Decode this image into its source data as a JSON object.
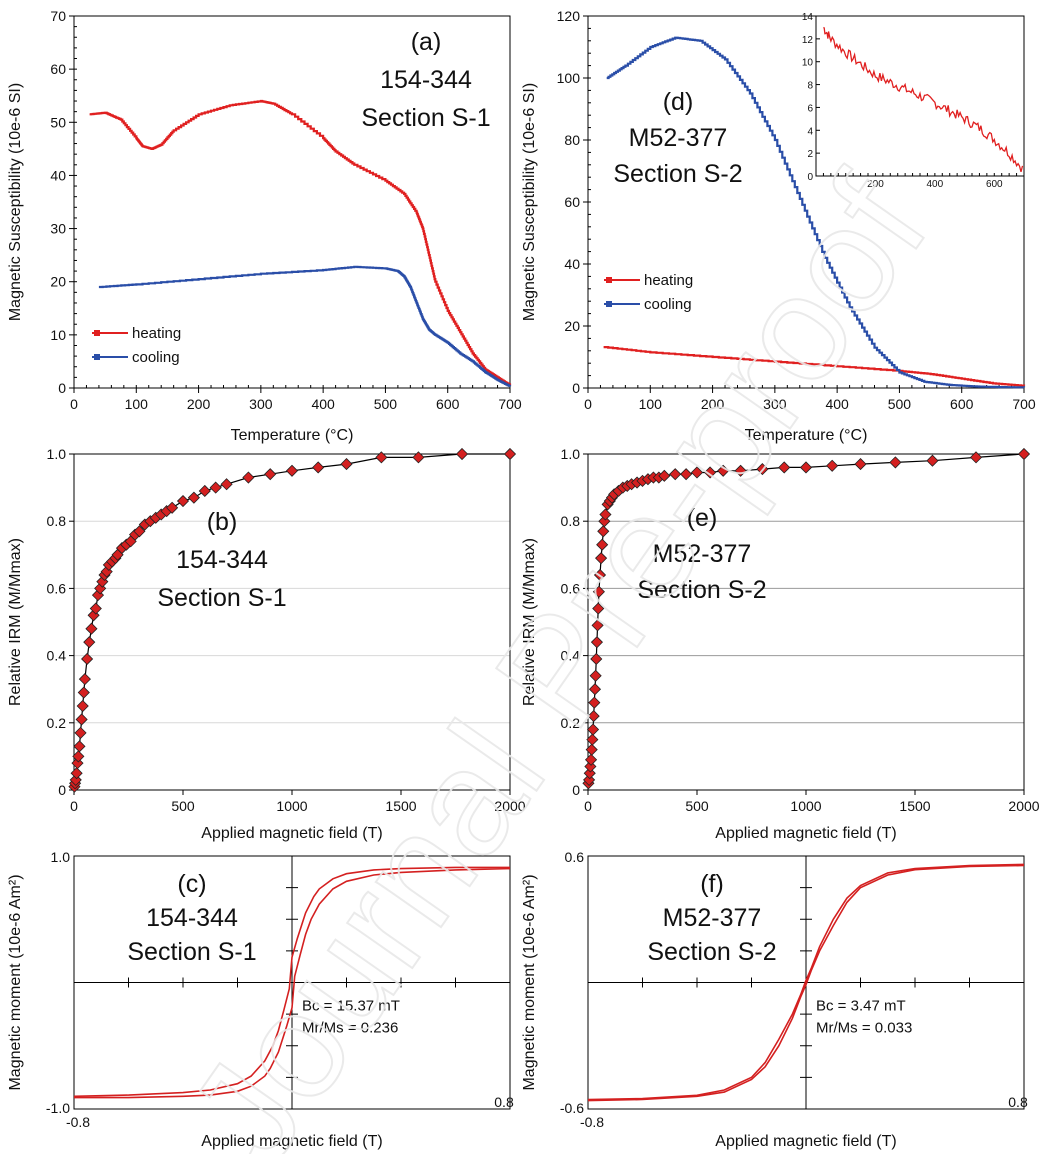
{
  "figure": {
    "watermark": "Journal Pre-proof"
  },
  "chart_data": [
    {
      "id": "a",
      "type": "line",
      "annotation": [
        "(a)",
        "154-344",
        "Section S-1"
      ],
      "xlabel": "Temperature (°C)",
      "ylabel": "Magnetic Susceptibility (10e-6 SI)",
      "xlim": [
        0,
        700
      ],
      "ylim": [
        0,
        70
      ],
      "xticks": [
        0,
        100,
        200,
        300,
        400,
        500,
        600,
        700
      ],
      "yticks": [
        0,
        10,
        20,
        30,
        40,
        50,
        60,
        70
      ],
      "legend": "lower-left",
      "series": [
        {
          "name": "heating",
          "color": "#e02020",
          "x": [
            25,
            50,
            75,
            100,
            110,
            125,
            140,
            160,
            200,
            250,
            300,
            320,
            350,
            400,
            420,
            450,
            500,
            530,
            550,
            560,
            570,
            580,
            600,
            620,
            640,
            660,
            680,
            700
          ],
          "y": [
            51.5,
            51.8,
            50.5,
            47,
            45.5,
            45,
            45.8,
            48.5,
            51.5,
            53.2,
            54,
            53.5,
            51.5,
            47,
            44.5,
            42,
            39,
            36.5,
            33,
            30,
            25,
            20,
            14.5,
            10.5,
            6.5,
            3.5,
            2,
            0.5
          ]
        },
        {
          "name": "cooling",
          "color": "#2a4ea8",
          "x": [
            40,
            100,
            200,
            300,
            400,
            450,
            500,
            520,
            530,
            540,
            550,
            560,
            570,
            580,
            600,
            620,
            640,
            660,
            680,
            700
          ],
          "y": [
            19,
            19.5,
            20.5,
            21.5,
            22.2,
            22.8,
            22.5,
            22,
            21,
            19,
            16,
            13,
            11,
            10,
            8.5,
            6.5,
            5,
            3,
            1.5,
            0.3
          ]
        }
      ]
    },
    {
      "id": "d",
      "type": "line",
      "annotation": [
        "(d)",
        "M52-377",
        "Section S-2"
      ],
      "xlabel": "Temperature (°C)",
      "ylabel": "Magnetic Susceptibility (10e-6 SI)",
      "xlim": [
        0,
        700
      ],
      "ylim": [
        0,
        120
      ],
      "xticks": [
        0,
        100,
        200,
        300,
        400,
        500,
        600,
        700
      ],
      "yticks": [
        0,
        20,
        40,
        60,
        80,
        100,
        120
      ],
      "legend": "left",
      "series": [
        {
          "name": "heating",
          "color": "#e02020",
          "x": [
            25,
            100,
            200,
            300,
            400,
            500,
            550,
            600,
            650,
            700
          ],
          "y": [
            13.2,
            11.5,
            10,
            8.5,
            7,
            5.5,
            4.5,
            3,
            1.5,
            0.7
          ]
        },
        {
          "name": "cooling",
          "color": "#2a4ea8",
          "x": [
            30,
            60,
            100,
            140,
            180,
            220,
            260,
            300,
            340,
            380,
            420,
            460,
            500,
            540,
            580,
            620,
            660,
            700
          ],
          "y": [
            100,
            104,
            110,
            113,
            112,
            106,
            95,
            80,
            61,
            42,
            26,
            13,
            5,
            2,
            1,
            0.5,
            0.3,
            0.2
          ]
        }
      ],
      "inset": {
        "xlim": [
          0,
          700
        ],
        "ylim": [
          0,
          14
        ],
        "xticks": [
          200,
          400,
          600
        ],
        "yticks": [
          0,
          2,
          4,
          6,
          8,
          10,
          12,
          14
        ],
        "color": "#e02020",
        "x": [
          25,
          50,
          100,
          150,
          200,
          250,
          300,
          350,
          400,
          450,
          500,
          550,
          600,
          650,
          700
        ],
        "y": [
          13,
          12,
          10.8,
          9.8,
          8.8,
          8.2,
          7.6,
          7,
          6.4,
          5.7,
          5,
          4.2,
          3.2,
          2,
          0.5
        ]
      }
    },
    {
      "id": "b",
      "type": "scatter",
      "annotation": [
        "(b)",
        "154-344",
        "Section S-1"
      ],
      "xlabel": "Applied magnetic field (T)",
      "ylabel": "Relative IRM (M/Mmax)",
      "xlim": [
        0,
        2000
      ],
      "ylim": [
        0,
        1
      ],
      "xticks": [
        0,
        500,
        1000,
        1500,
        2000
      ],
      "yticks": [
        0,
        0.2,
        0.4,
        0.6,
        0.8,
        1.0
      ],
      "ytick_labels": [
        "0",
        "0.2",
        "0.4",
        "0.6",
        "0.8",
        "1.0"
      ],
      "grid": true,
      "marker_color": "#d42020",
      "x": [
        2,
        5,
        8,
        12,
        16,
        20,
        25,
        30,
        35,
        40,
        45,
        50,
        60,
        70,
        80,
        90,
        100,
        110,
        120,
        130,
        140,
        150,
        160,
        175,
        190,
        200,
        220,
        240,
        260,
        280,
        300,
        325,
        350,
        375,
        400,
        425,
        450,
        500,
        550,
        600,
        650,
        700,
        800,
        900,
        1000,
        1120,
        1250,
        1410,
        1580,
        1780,
        2000
      ],
      "y": [
        0.01,
        0.02,
        0.03,
        0.05,
        0.08,
        0.1,
        0.13,
        0.17,
        0.21,
        0.25,
        0.29,
        0.33,
        0.39,
        0.44,
        0.48,
        0.52,
        0.54,
        0.58,
        0.6,
        0.62,
        0.64,
        0.65,
        0.67,
        0.68,
        0.69,
        0.7,
        0.72,
        0.73,
        0.74,
        0.76,
        0.77,
        0.79,
        0.8,
        0.81,
        0.82,
        0.83,
        0.84,
        0.86,
        0.87,
        0.89,
        0.9,
        0.91,
        0.93,
        0.94,
        0.95,
        0.96,
        0.97,
        0.99,
        0.99,
        1.0,
        1.0
      ]
    },
    {
      "id": "e",
      "type": "scatter",
      "annotation": [
        "(e)",
        "M52-377",
        "Section S-2"
      ],
      "xlabel": "Applied magnetic field (T)",
      "ylabel": "Relative IRM (M/Mmax)",
      "xlim": [
        0,
        2000
      ],
      "ylim": [
        0,
        1
      ],
      "xticks": [
        0,
        500,
        1000,
        1500,
        2000
      ],
      "yticks": [
        0,
        0.2,
        0.4,
        0.6,
        0.8,
        1.0
      ],
      "ytick_labels": [
        "0",
        "0.2",
        "0.4",
        "0.6",
        "0.8",
        "1.0"
      ],
      "grid": true,
      "marker_color": "#d42020",
      "x": [
        2,
        5,
        8,
        11,
        14,
        17,
        20,
        23,
        26,
        29,
        32,
        35,
        38,
        41,
        44,
        47,
        50,
        55,
        60,
        65,
        70,
        75,
        80,
        90,
        100,
        110,
        120,
        140,
        160,
        180,
        200,
        225,
        250,
        275,
        300,
        325,
        350,
        400,
        450,
        500,
        560,
        620,
        700,
        800,
        900,
        1000,
        1120,
        1250,
        1410,
        1580,
        1780,
        2000
      ],
      "y": [
        0.02,
        0.03,
        0.05,
        0.07,
        0.09,
        0.12,
        0.15,
        0.18,
        0.22,
        0.26,
        0.3,
        0.34,
        0.39,
        0.44,
        0.49,
        0.54,
        0.59,
        0.64,
        0.69,
        0.73,
        0.77,
        0.8,
        0.82,
        0.85,
        0.86,
        0.87,
        0.88,
        0.89,
        0.9,
        0.905,
        0.91,
        0.915,
        0.92,
        0.925,
        0.93,
        0.93,
        0.935,
        0.94,
        0.94,
        0.945,
        0.945,
        0.95,
        0.95,
        0.955,
        0.96,
        0.96,
        0.965,
        0.97,
        0.975,
        0.98,
        0.99,
        1.0
      ]
    },
    {
      "id": "c",
      "type": "line",
      "annotation": [
        "(c)",
        "154-344",
        "Section S-1"
      ],
      "xlabel": "Applied magnetic field (T)",
      "ylabel": "Magnetic moment (10e-6 Am²)",
      "xlim": [
        -0.8,
        0.8
      ],
      "ylim": [
        -1.0,
        1.0
      ],
      "xtick_labels": [
        "-0.8",
        "0.8"
      ],
      "ytick_labels": [
        "1.0",
        "-1.0"
      ],
      "stats": [
        "Bc = 15.37 mT",
        "Mr/Ms = 0.236"
      ],
      "color": "#d42020",
      "series": [
        {
          "name": "upper branch",
          "x": [
            -0.8,
            -0.6,
            -0.4,
            -0.3,
            -0.2,
            -0.15,
            -0.1,
            -0.07,
            -0.05,
            -0.03,
            -0.01,
            0,
            0.02,
            0.05,
            0.08,
            0.1,
            0.15,
            0.2,
            0.3,
            0.4,
            0.6,
            0.8
          ],
          "y": [
            -0.9,
            -0.89,
            -0.87,
            -0.85,
            -0.8,
            -0.74,
            -0.62,
            -0.5,
            -0.38,
            -0.22,
            -0.05,
            0.2,
            0.35,
            0.55,
            0.68,
            0.74,
            0.82,
            0.86,
            0.89,
            0.9,
            0.91,
            0.91
          ]
        },
        {
          "name": "lower branch",
          "x": [
            -0.8,
            -0.6,
            -0.4,
            -0.3,
            -0.2,
            -0.15,
            -0.1,
            -0.08,
            -0.05,
            -0.02,
            0,
            0.01,
            0.03,
            0.05,
            0.07,
            0.1,
            0.15,
            0.2,
            0.3,
            0.4,
            0.6,
            0.8
          ],
          "y": [
            -0.91,
            -0.91,
            -0.9,
            -0.89,
            -0.86,
            -0.82,
            -0.74,
            -0.68,
            -0.55,
            -0.35,
            -0.2,
            0.05,
            0.22,
            0.38,
            0.5,
            0.62,
            0.74,
            0.8,
            0.85,
            0.87,
            0.89,
            0.9
          ]
        }
      ]
    },
    {
      "id": "f",
      "type": "line",
      "annotation": [
        "(f)",
        "M52-377",
        "Section S-2"
      ],
      "xlabel": "Applied magnetic field (T)",
      "ylabel": "Magnetic moment (10e-6 Am²)",
      "xlim": [
        -0.8,
        0.8
      ],
      "ylim": [
        -0.6,
        0.6
      ],
      "xtick_labels": [
        "-0.8",
        "0.8"
      ],
      "ytick_labels": [
        "0.6",
        "-0.6"
      ],
      "stats": [
        "Bc = 3.47 mT",
        "Mr/Ms = 0.033"
      ],
      "color": "#d42020",
      "series": [
        {
          "name": "upper branch",
          "x": [
            -0.8,
            -0.6,
            -0.4,
            -0.3,
            -0.2,
            -0.15,
            -0.1,
            -0.05,
            -0.02,
            0,
            0.02,
            0.05,
            0.1,
            0.15,
            0.2,
            0.3,
            0.4,
            0.6,
            0.8
          ],
          "y": [
            -0.555,
            -0.55,
            -0.535,
            -0.51,
            -0.45,
            -0.38,
            -0.27,
            -0.15,
            -0.06,
            0.01,
            0.07,
            0.17,
            0.3,
            0.4,
            0.46,
            0.52,
            0.54,
            0.555,
            0.56
          ]
        },
        {
          "name": "lower branch",
          "x": [
            -0.8,
            -0.6,
            -0.4,
            -0.3,
            -0.2,
            -0.15,
            -0.1,
            -0.05,
            -0.02,
            0,
            0.02,
            0.05,
            0.1,
            0.15,
            0.2,
            0.3,
            0.4,
            0.6,
            0.8
          ],
          "y": [
            -0.56,
            -0.555,
            -0.54,
            -0.52,
            -0.46,
            -0.4,
            -0.3,
            -0.17,
            -0.07,
            -0.01,
            0.06,
            0.15,
            0.27,
            0.38,
            0.45,
            0.51,
            0.535,
            0.55,
            0.555
          ]
        }
      ]
    }
  ]
}
